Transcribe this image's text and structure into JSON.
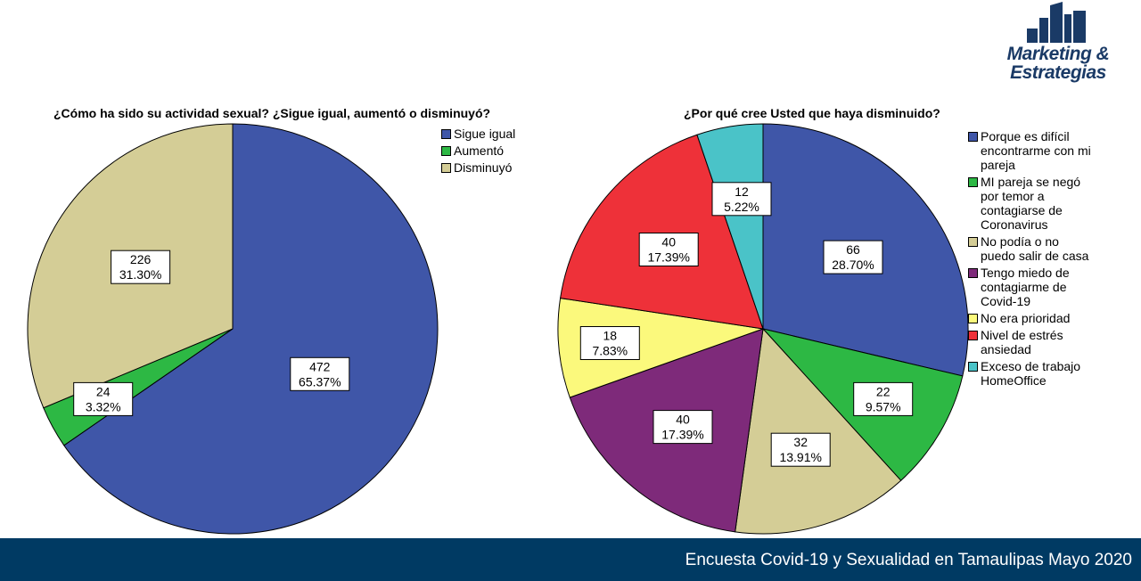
{
  "logo": {
    "line1": "Marketing &",
    "line2": "Estrategias",
    "color": "#1a3a66"
  },
  "footer": {
    "text": "Encuesta Covid-19 y Sexualidad en Tamaulipas Mayo 2020",
    "bg": "#003a63"
  },
  "chart_data": [
    {
      "type": "pie",
      "title": "¿Cómo ha sido su actividad sexual? ¿Sigue igual, aumentó o disminuyó?",
      "legend_position": "top-right",
      "categories": [
        "Sigue igual",
        "Aumentó",
        "Disminuyó"
      ],
      "values": [
        472,
        24,
        226
      ],
      "percent_labels": [
        "65.37%",
        "3.32%",
        "31.30%"
      ],
      "colors": [
        "#3f56a8",
        "#2db844",
        "#d4cd96"
      ]
    },
    {
      "type": "pie",
      "title": "¿Por qué cree Usted que haya disminuido?",
      "legend_position": "right",
      "categories": [
        "Porque es difícil encontrarme con mi pareja",
        "MI pareja se negó por temor a contagiarse de Coronavirus",
        "No podía o no puedo salir de casa",
        "Tengo miedo de contagiarme de Covid-19",
        "No era prioridad",
        "Nivel de estrés ansiedad",
        "Exceso de trabajo HomeOffice"
      ],
      "values": [
        66,
        22,
        32,
        40,
        18,
        40,
        12
      ],
      "percent_labels": [
        "28.70%",
        "9.57%",
        "13.91%",
        "17.39%",
        "7.83%",
        "17.39%",
        "5.22%"
      ],
      "colors": [
        "#3f56a8",
        "#2db844",
        "#d4cd96",
        "#7e2a7a",
        "#fbf97c",
        "#ee3139",
        "#4ac3c8"
      ]
    }
  ]
}
